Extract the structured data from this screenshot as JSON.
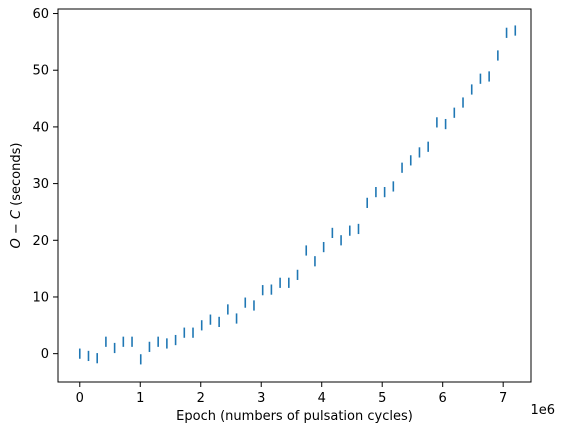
{
  "chart_data": {
    "type": "scatter",
    "title": "",
    "xlabel": "Epoch (numbers of pulsation cycles)",
    "ylabel_parts": [
      "O",
      " − ",
      "C",
      " (seconds)"
    ],
    "x_offset_label": "1e6",
    "xlim": [
      -0.36,
      7.46
    ],
    "ylim": [
      -5.0,
      60.8
    ],
    "x_ticks": [
      0,
      1,
      2,
      3,
      4,
      5,
      6,
      7
    ],
    "y_ticks": [
      0,
      10,
      20,
      30,
      40,
      50,
      60
    ],
    "grid": false,
    "marker": "errorbar-only",
    "color": "#1f77b4",
    "series": [
      {
        "x": [
          0.0,
          0.144,
          0.288,
          0.432,
          0.576,
          0.72,
          0.864,
          1.008,
          1.152,
          1.296,
          1.44,
          1.584,
          1.728,
          1.872,
          2.016,
          2.16,
          2.304,
          2.448,
          2.592,
          2.736,
          2.88,
          3.024,
          3.168,
          3.312,
          3.456,
          3.6,
          3.744,
          3.888,
          4.032,
          4.176,
          4.32,
          4.464,
          4.608,
          4.752,
          4.896,
          5.04,
          5.184,
          5.328,
          5.472,
          5.616,
          5.76,
          5.904,
          6.048,
          6.192,
          6.336,
          6.48,
          6.624,
          6.768,
          6.912,
          7.056,
          7.2
        ],
        "y": [
          0.0,
          -0.4,
          -0.8,
          2.1,
          1.0,
          2.1,
          2.1,
          -1.0,
          1.2,
          2.1,
          1.8,
          2.4,
          3.7,
          3.7,
          5.0,
          6.0,
          5.6,
          7.8,
          6.2,
          9.0,
          8.5,
          11.2,
          11.3,
          12.5,
          12.5,
          13.9,
          18.2,
          16.3,
          18.8,
          21.3,
          20.0,
          21.7,
          22.0,
          26.6,
          28.5,
          28.5,
          29.5,
          32.8,
          34.1,
          35.5,
          36.5,
          40.8,
          40.5,
          42.5,
          44.3,
          46.6,
          48.5,
          48.9,
          52.6,
          56.6,
          57.0
        ],
        "yerr": 0.9
      }
    ]
  }
}
